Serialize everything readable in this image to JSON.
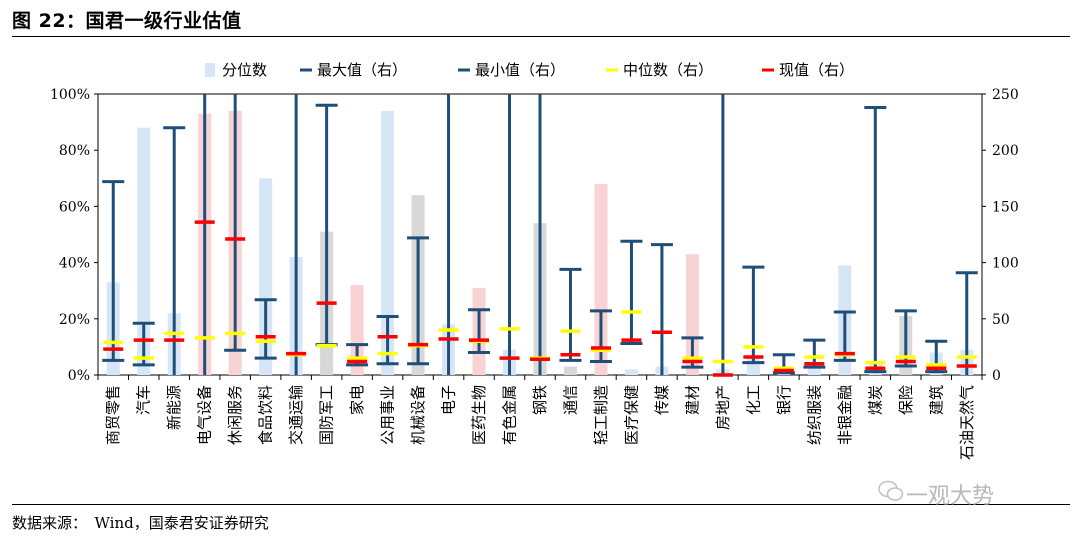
{
  "figure_title": "图 22：国君一级行业估值",
  "source": "数据来源：　Wind，国泰君安证券研究",
  "watermark": "一观大势",
  "colors": {
    "pct_bar": "#d6e6f7",
    "pct_bar_red": "#f9d3d3",
    "pct_bar_gray": "#d8d8d8",
    "range": "#1f4e79",
    "median": "#ffff00",
    "current": "#ff0000"
  },
  "chart_data": {
    "type": "bar",
    "title": "",
    "xlabel": "",
    "ylabel_left": "",
    "ylabel_right": "",
    "ylim_left": [
      0,
      100
    ],
    "ylim_right": [
      0,
      250
    ],
    "left_ticks": [
      "0%",
      "20%",
      "40%",
      "60%",
      "80%",
      "100%"
    ],
    "right_ticks": [
      "0",
      "50",
      "100",
      "150",
      "200",
      "250"
    ],
    "legend": [
      {
        "key": "pct",
        "label": "分位数"
      },
      {
        "key": "max",
        "label": "最大值（右）"
      },
      {
        "key": "min",
        "label": "最小值（右）"
      },
      {
        "key": "median",
        "label": "中位数（右）"
      },
      {
        "key": "current",
        "label": "现值（右）"
      }
    ],
    "categories": [
      "商贸零售",
      "汽车",
      "新能源",
      "电气设备",
      "休闲服务",
      "食品饮料",
      "交通运输",
      "国防军工",
      "家电",
      "公用事业",
      "机械设备",
      "电子",
      "医药生物",
      "有色金属",
      "钢铁",
      "通信",
      "轻工制造",
      "医疗保健",
      "传媒",
      "建材",
      "房地产",
      "化工",
      "银行",
      "纺织服装",
      "非银金融",
      "煤炭",
      "保险",
      "建筑",
      "石油天然气"
    ],
    "series": [
      {
        "name": "分位数",
        "axis": "left",
        "values": [
          33,
          88,
          22,
          93,
          94,
          70,
          42,
          51,
          32,
          94,
          64,
          18,
          31,
          9,
          54,
          3,
          68,
          2,
          3,
          43,
          2,
          7,
          3,
          3,
          39,
          4,
          21,
          8,
          9
        ],
        "bar_color": [
          "blue",
          "blue",
          "blue",
          "red",
          "red",
          "blue",
          "blue",
          "gray",
          "red",
          "blue",
          "gray",
          "blue",
          "red",
          "blue",
          "gray",
          "gray",
          "red",
          "blue",
          "blue",
          "red",
          "blue",
          "blue",
          "blue",
          "blue",
          "blue",
          "blue",
          "gray",
          "blue",
          "blue"
        ]
      },
      {
        "name": "最大值（右）",
        "axis": "right",
        "values": [
          172,
          46,
          220,
          250,
          250,
          67,
          250,
          240,
          27,
          52,
          122,
          250,
          58,
          250,
          250,
          94,
          57,
          119,
          116,
          33,
          250,
          96,
          18,
          31,
          56,
          238,
          57,
          30,
          91
        ]
      },
      {
        "name": "最小值（右）",
        "axis": "right",
        "values": [
          13,
          9,
          0,
          0,
          22,
          15,
          0,
          27,
          9,
          10,
          10,
          0,
          20,
          0,
          0,
          13,
          12,
          28,
          0,
          7,
          0,
          11,
          2,
          7,
          13,
          3,
          8,
          3,
          0
        ]
      },
      {
        "name": "中位数（右）",
        "axis": "right",
        "values": [
          29,
          15,
          37,
          33,
          37,
          30,
          18,
          26,
          15,
          19,
          26,
          40,
          30,
          41,
          15,
          39,
          22,
          56,
          38,
          15,
          12,
          25,
          6,
          16,
          18,
          11,
          16,
          9,
          16
        ]
      },
      {
        "name": "现值（右）",
        "axis": "right",
        "values": [
          23,
          31,
          31,
          136,
          121,
          34,
          19,
          64,
          12,
          34,
          27,
          32,
          31,
          15,
          14,
          18,
          24,
          31,
          38,
          12,
          0,
          16,
          4,
          10,
          19,
          6,
          12,
          6,
          8
        ]
      }
    ]
  }
}
